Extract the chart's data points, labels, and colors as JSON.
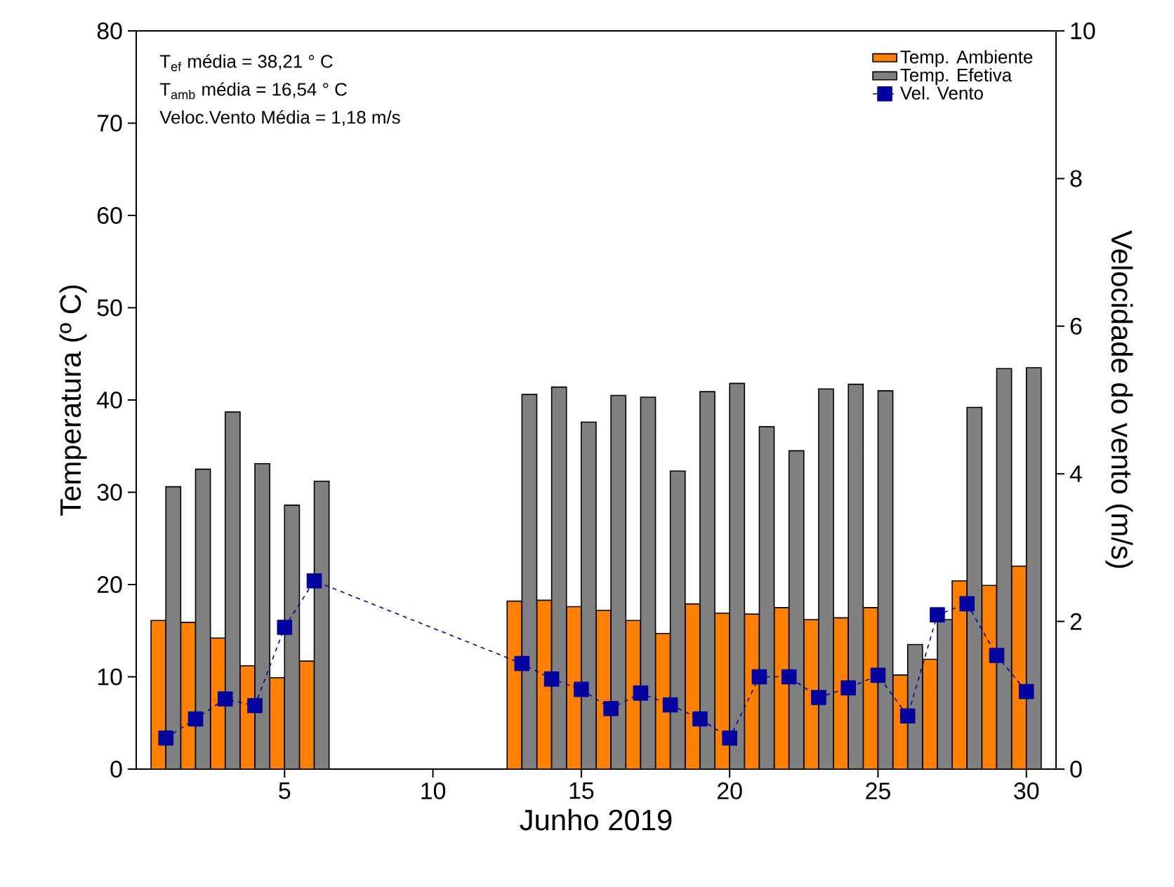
{
  "chart_data": {
    "type": "bar",
    "xlabel": "Junho 2019",
    "ylabel": "Temperatura (º C)",
    "y2label": "Velocidade do vento (m/s)",
    "annotations": [
      "T$_{ef}$ média = 38,21 ° C",
      "T$_{amb}$ média = 16,54 ° C",
      "Veloc.Vento Média = 1,18 m/s"
    ],
    "xlim": [
      0,
      31
    ],
    "xticks": [
      5,
      10,
      15,
      20,
      25,
      30
    ],
    "ylim": [
      0,
      80
    ],
    "yticks": [
      0,
      10,
      20,
      30,
      40,
      50,
      60,
      70,
      80
    ],
    "y2lim": [
      0,
      10
    ],
    "y2ticks": [
      0,
      2,
      4,
      6,
      8,
      10
    ],
    "legend": "top right",
    "marker": "square",
    "line_style": "dashed",
    "series": [
      {
        "name": "Temp. Ambiente",
        "color": "#ff8000",
        "x": [
          1,
          2,
          3,
          4,
          5,
          6,
          13,
          14,
          15,
          16,
          17,
          18,
          19,
          20,
          21,
          22,
          23,
          24,
          25,
          26,
          27,
          28,
          29,
          30
        ],
        "values": [
          16.1,
          15.9,
          14.2,
          11.2,
          9.9,
          11.7,
          18.2,
          18.3,
          17.6,
          17.2,
          16.1,
          14.7,
          17.9,
          16.9,
          16.8,
          17.5,
          16.2,
          16.4,
          17.5,
          10.2,
          11.9,
          20.4,
          19.9,
          22.0
        ]
      },
      {
        "name": "Temp. Efetiva",
        "color": "#808080",
        "x": [
          1,
          2,
          3,
          4,
          5,
          6,
          13,
          14,
          15,
          16,
          17,
          18,
          19,
          20,
          21,
          22,
          23,
          24,
          25,
          26,
          27,
          28,
          29,
          30
        ],
        "values": [
          30.6,
          32.5,
          38.7,
          33.1,
          28.6,
          31.2,
          40.6,
          41.4,
          37.6,
          40.5,
          40.3,
          32.3,
          40.9,
          41.8,
          37.1,
          34.5,
          41.2,
          41.7,
          41.0,
          13.5,
          16.2,
          39.2,
          43.4,
          43.5
        ]
      },
      {
        "name": "Vel. Vento",
        "type": "line",
        "axis": "y2",
        "color": "#00009f",
        "x": [
          1,
          2,
          3,
          4,
          5,
          6,
          13,
          14,
          15,
          16,
          17,
          18,
          19,
          20,
          21,
          22,
          23,
          24,
          25,
          26,
          27,
          28,
          29,
          30
        ],
        "values": [
          0.42,
          0.68,
          0.95,
          0.86,
          1.92,
          2.55,
          1.43,
          1.22,
          1.08,
          0.82,
          1.03,
          0.87,
          0.68,
          0.42,
          1.25,
          1.25,
          0.97,
          1.1,
          1.27,
          0.72,
          2.09,
          2.24,
          1.54,
          1.05
        ]
      }
    ]
  }
}
